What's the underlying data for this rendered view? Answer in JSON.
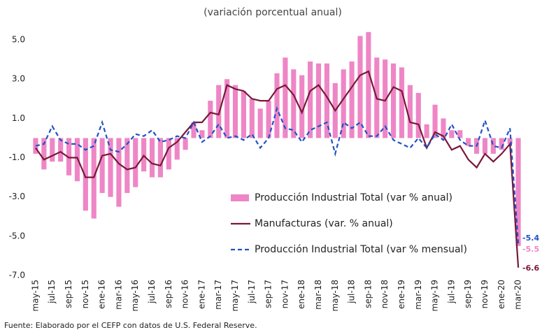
{
  "chart_data": {
    "type": "bar",
    "title": "(variación porcentual anual)",
    "source": "Fuente: Elaborado por el CEFP con datos de U.S. Federal Reserve.",
    "categories": [
      "may-15",
      null,
      "jul-15",
      null,
      "sep-15",
      null,
      "nov-15",
      null,
      "ene-16",
      null,
      "mar-16",
      null,
      "may-16",
      null,
      "jul-16",
      null,
      "sep-16",
      null,
      "nov-16",
      null,
      "ene-17",
      null,
      "mar-17",
      null,
      "may-17",
      null,
      "jul-17",
      null,
      "sep-17",
      null,
      "nov-17",
      null,
      "ene-18",
      null,
      "mar-18",
      null,
      "may-18",
      null,
      "jul-18",
      null,
      "sep-18",
      null,
      "nov-18",
      null,
      "ene-19",
      null,
      "mar-19",
      null,
      "may-19",
      null,
      "jul-19",
      null,
      "sep-19",
      null,
      "nov-19",
      null,
      "ene-20",
      null,
      "mar-20"
    ],
    "series": [
      {
        "name": "Producción Industrial Total (var % anual)",
        "type": "bar",
        "color": "#ee86c6",
        "values": [
          -0.8,
          -1.6,
          -1.2,
          -1.2,
          -1.9,
          -2.2,
          -3.7,
          -4.1,
          -2.8,
          -3.0,
          -3.5,
          -2.8,
          -2.5,
          -1.7,
          -2.0,
          -2.0,
          -1.6,
          -1.1,
          -0.6,
          0.8,
          0.4,
          1.9,
          2.7,
          3.0,
          2.7,
          2.4,
          2.0,
          1.5,
          1.9,
          3.3,
          4.1,
          3.5,
          3.2,
          3.9,
          3.8,
          3.8,
          2.8,
          3.5,
          3.9,
          5.2,
          5.4,
          4.1,
          4.0,
          3.8,
          3.6,
          2.7,
          2.3,
          0.7,
          1.7,
          1.0,
          0.4,
          0.4,
          -0.4,
          -0.8,
          -0.8,
          -0.8,
          -0.6,
          -0.3,
          -5.5
        ]
      },
      {
        "name": "Manufacturas (var. % anual)",
        "type": "line",
        "color": "#7a1838",
        "values": [
          -0.5,
          -1.1,
          -0.9,
          -0.7,
          -1.0,
          -1.0,
          -2.0,
          -2.0,
          -0.9,
          -0.8,
          -1.3,
          -1.6,
          -1.5,
          -0.9,
          -1.3,
          -1.4,
          -0.5,
          -0.2,
          0.3,
          0.8,
          0.8,
          1.3,
          1.2,
          2.7,
          2.5,
          2.4,
          2.0,
          1.9,
          1.9,
          2.5,
          2.7,
          2.2,
          1.3,
          2.4,
          2.7,
          2.1,
          1.4,
          2.0,
          2.6,
          3.2,
          3.4,
          2.0,
          1.9,
          2.6,
          2.4,
          0.8,
          0.7,
          -0.5,
          0.3,
          0.1,
          -0.6,
          -0.4,
          -1.1,
          -1.5,
          -0.8,
          -1.2,
          -0.8,
          -0.3,
          -6.6
        ]
      },
      {
        "name": "Producción Industrial Total (var % mensual)",
        "type": "line",
        "line_style": "dashed",
        "color": "#2251c4",
        "values": [
          -0.4,
          -0.3,
          0.6,
          -0.1,
          -0.3,
          -0.3,
          -0.6,
          -0.4,
          0.8,
          -0.6,
          -0.7,
          -0.3,
          0.2,
          0.1,
          0.4,
          -0.2,
          -0.1,
          0.1,
          0.0,
          0.8,
          -0.2,
          0.1,
          0.7,
          0.0,
          0.1,
          -0.1,
          0.2,
          -0.5,
          0.0,
          1.5,
          0.5,
          0.4,
          -0.2,
          0.4,
          0.6,
          0.8,
          -0.8,
          0.8,
          0.5,
          0.8,
          0.1,
          0.1,
          0.6,
          -0.1,
          -0.3,
          -0.5,
          0.0,
          -0.5,
          0.2,
          -0.1,
          0.7,
          -0.1,
          -0.4,
          -0.4,
          0.9,
          -0.4,
          -0.5,
          0.5,
          -5.4
        ]
      }
    ],
    "ylim": [
      -7,
      6
    ],
    "yticks": [
      {
        "value": 5,
        "label": "5.0"
      },
      {
        "value": 3,
        "label": "3.0"
      },
      {
        "value": 1,
        "label": "1.0"
      },
      {
        "value": -1,
        "label": "-1.0"
      },
      {
        "value": -3,
        "label": "-3.0"
      },
      {
        "value": -5,
        "label": "-5.0"
      },
      {
        "value": -7,
        "label": "-7.0"
      }
    ],
    "grid": false,
    "legend": "center-right"
  }
}
